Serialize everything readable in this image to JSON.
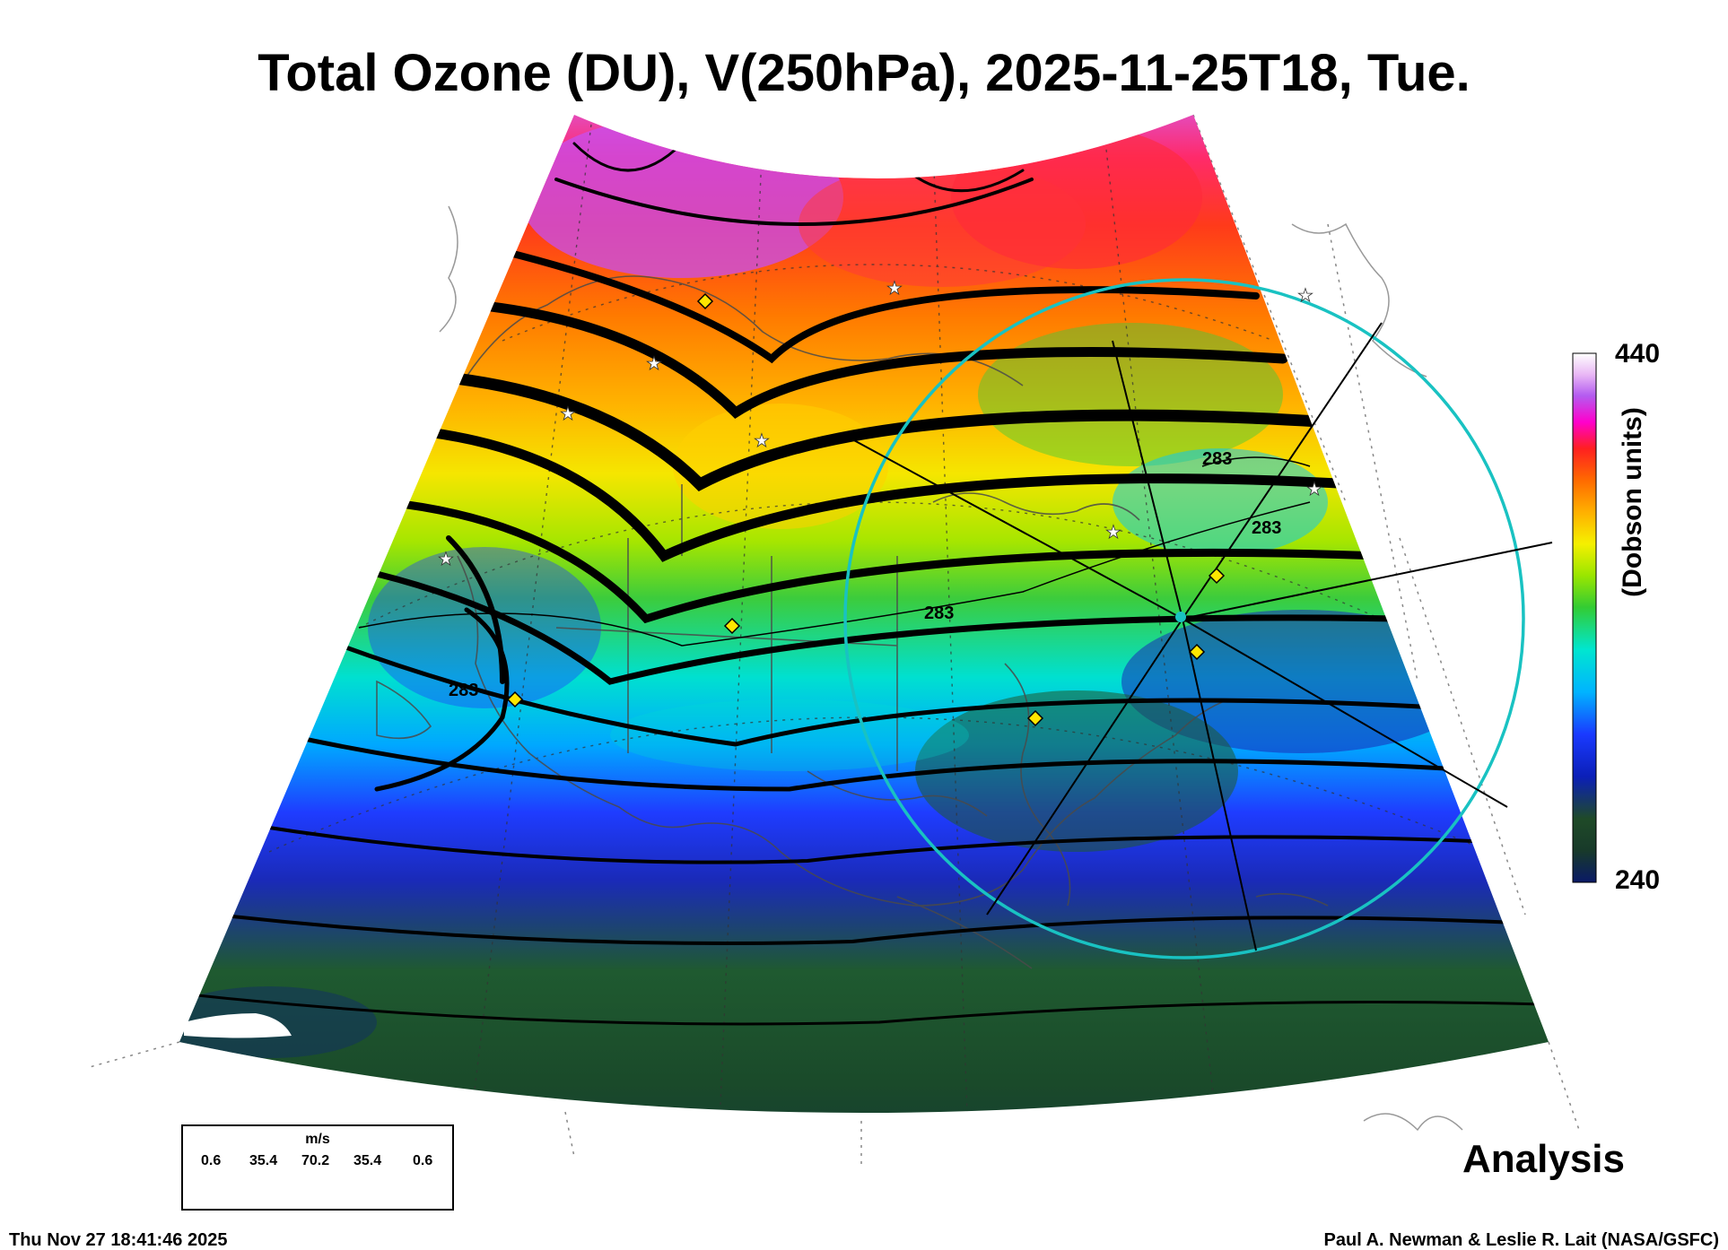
{
  "title": "Total Ozone (DU), V(250hPa), 2025-11-25T18, Tue.",
  "colorbar": {
    "max_label": "440",
    "min_label": "240",
    "units_label": "(Dobson units)",
    "stops": [
      "#ffffff",
      "#e9b8f5",
      "#b45cf0",
      "#ff00cc",
      "#ff2020",
      "#ff6a00",
      "#ffb000",
      "#f5f000",
      "#9ae600",
      "#33cc33",
      "#00e6d0",
      "#00b4ff",
      "#1a3aff",
      "#0b1fb8",
      "#1f4a28",
      "#183a2a",
      "#0a1a66"
    ]
  },
  "contour_labels": [
    "283",
    "283",
    "283",
    "283"
  ],
  "legend": {
    "units": "m/s",
    "values": [
      "0.6",
      "35.4",
      "70.2",
      "35.4",
      "0.6"
    ]
  },
  "analysis_label": "Analysis",
  "timestamp": "Thu Nov 27 18:41:46 2025",
  "credit": "Paul A. Newman & Leslie R. Lait (NASA/GSFC)",
  "colors": {
    "circle": "#19c2c2",
    "marker_diamond": "#ffe600",
    "marker_star": "#ffffff",
    "streamline": "#000000"
  }
}
